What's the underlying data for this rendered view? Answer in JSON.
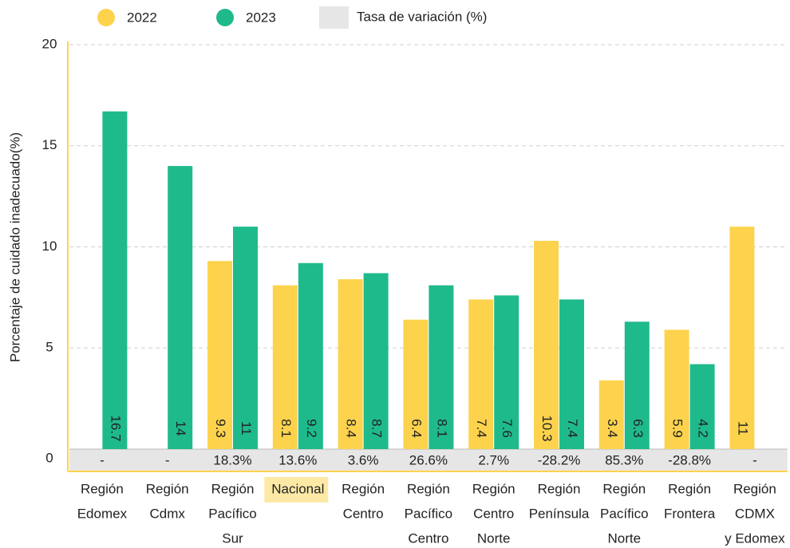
{
  "chart_data": {
    "type": "bar",
    "y_label": "Porcentaje de cuidado inadecuado(%)",
    "categories": [
      [
        "Región",
        "Edomex"
      ],
      [
        "Región",
        "Cdmx"
      ],
      [
        "Región",
        "Pacífico",
        "Sur"
      ],
      [
        "Nacional"
      ],
      [
        "Región",
        "Centro"
      ],
      [
        "Región",
        "Pacífico",
        "Centro"
      ],
      [
        "Región",
        "Centro",
        "Norte"
      ],
      [
        "Región",
        "Península"
      ],
      [
        "Región",
        "Pacífico",
        "Norte"
      ],
      [
        "Región",
        "Frontera"
      ],
      [
        "Región",
        "CDMX",
        "y Edomex"
      ]
    ],
    "highlight": "Nacional",
    "highlight_color": "#fde9a6",
    "series": [
      {
        "name": "2022",
        "color": "#fdd34d",
        "values": [
          null,
          null,
          9.3,
          8.1,
          8.4,
          6.4,
          7.4,
          10.3,
          3.4,
          5.9,
          11
        ]
      },
      {
        "name": "2023",
        "color": "#1fba8c",
        "values": [
          16.7,
          14,
          11,
          9.2,
          8.7,
          8.1,
          7.6,
          7.4,
          6.3,
          4.2,
          null
        ]
      }
    ],
    "rate": {
      "name": "Tasa de variación (%)",
      "color": "#e6e6e6",
      "values": [
        null,
        null,
        18.3,
        13.6,
        3.6,
        26.6,
        2.7,
        -28.2,
        85.3,
        -28.8,
        null
      ],
      "value_labels": [
        "-",
        "-",
        "18.3%",
        "13.6%",
        "3.6%",
        "26.6%",
        "2.7%",
        "-28.2%",
        "85.3%",
        "-28.8%",
        "-"
      ]
    },
    "ylim": [
      0,
      20
    ],
    "yticks": [
      0,
      5,
      10,
      15,
      20
    ],
    "grid": true,
    "axis_color": "#fdd34d"
  }
}
